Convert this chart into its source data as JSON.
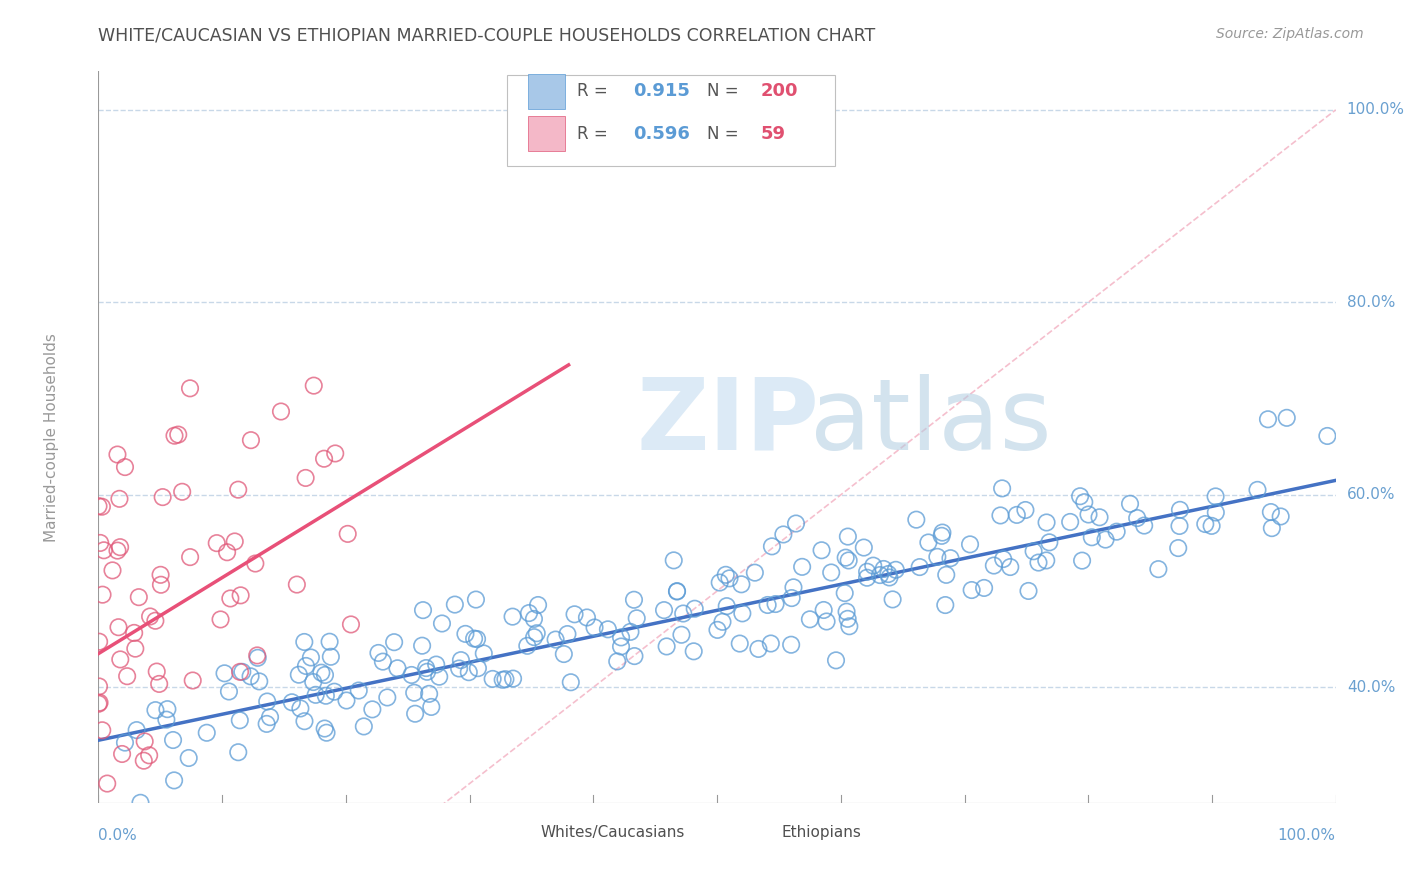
{
  "title": "WHITE/CAUCASIAN VS ETHIOPIAN MARRIED-COUPLE HOUSEHOLDS CORRELATION CHART",
  "source": "Source: ZipAtlas.com",
  "ylabel": "Married-couple Households",
  "watermark_zip": "ZIP",
  "watermark_atlas": "atlas",
  "blue_R": 0.915,
  "blue_N": 200,
  "pink_R": 0.596,
  "pink_N": 59,
  "blue_color": "#a8c8e8",
  "blue_edge_color": "#5b9bd5",
  "pink_color": "#f4b8c8",
  "pink_edge_color": "#e05878",
  "axis_color": "#999999",
  "grid_color": "#c8d8e8",
  "grid_style": "--",
  "label_color": "#6aa0d0",
  "title_color": "#505050",
  "legend_R_color": "#5b9bd5",
  "legend_N_color": "#e05070",
  "ref_line_color": "#f4b8c8",
  "blue_line_color": "#4472c4",
  "pink_line_color": "#e85078",
  "blue_line_x": [
    0.0,
    1.0
  ],
  "blue_line_y": [
    0.345,
    0.615
  ],
  "pink_line_x": [
    0.0,
    0.38
  ],
  "pink_line_y": [
    0.435,
    0.735
  ],
  "ref_line_x": [
    0.0,
    1.0
  ],
  "ref_line_y": [
    0.0,
    1.0
  ],
  "ytick_labels": [
    "40.0%",
    "60.0%",
    "80.0%",
    "100.0%"
  ],
  "ytick_values": [
    0.4,
    0.6,
    0.8,
    1.0
  ],
  "xright_label": "100.0%",
  "xleft_label": "0.0%",
  "background_color": "#ffffff",
  "ymin": 0.28,
  "ymax": 1.04,
  "xmin": 0.0,
  "xmax": 1.0,
  "legend_labels": [
    "Whites/Caucasians",
    "Ethiopians"
  ]
}
